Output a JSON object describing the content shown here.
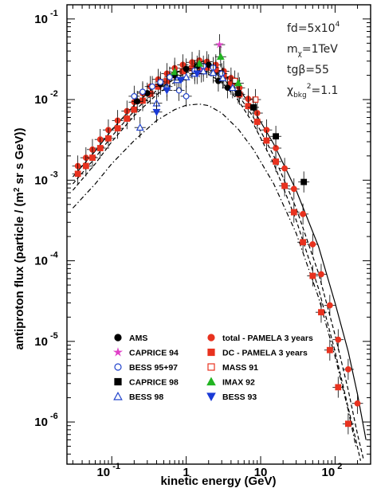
{
  "chart_data": {
    "type": "scatter",
    "xlabel": "kinetic energy (GeV)",
    "ylabel": "antiproton flux (particle / (m^2 sr s GeV))",
    "x_scale": "log",
    "y_scale": "log",
    "xlim": [
      0.025,
      300
    ],
    "ylim": [
      3e-07,
      0.15
    ],
    "x_ticks": [
      {
        "value": 0.1,
        "base": "10",
        "exp": "-1"
      },
      {
        "value": 1,
        "base": "1",
        "exp": ""
      },
      {
        "value": 10,
        "base": "10",
        "exp": ""
      },
      {
        "value": 100,
        "base": "10",
        "exp": "2"
      }
    ],
    "y_ticks": [
      {
        "value": 0.1,
        "base": "10",
        "exp": "-1"
      },
      {
        "value": 0.01,
        "base": "10",
        "exp": "-2"
      },
      {
        "value": 0.001,
        "base": "10",
        "exp": "-3"
      },
      {
        "value": 0.0001,
        "base": "10",
        "exp": "-4"
      },
      {
        "value": 1e-05,
        "base": "10",
        "exp": "-5"
      },
      {
        "value": 1e-06,
        "base": "10",
        "exp": "-6"
      }
    ],
    "annotations": [
      {
        "main": "fd=5x10",
        "sup": "4",
        "rest": ""
      },
      {
        "main": "m",
        "sub": "χ",
        "rest": "=1TeV"
      },
      {
        "main": "tgβ=55",
        "rest": ""
      },
      {
        "main": "χ",
        "sub": "bkg",
        "sup": "2",
        "rest": "=1.1"
      }
    ],
    "legend": [
      {
        "label": "AMS",
        "marker": "circle-filled",
        "color": "#000000"
      },
      {
        "label": "total - PAMELA 3 years",
        "marker": "circle-filled",
        "color": "#e8321f"
      },
      {
        "label": "CAPRICE 94",
        "marker": "star",
        "color": "#e040c8"
      },
      {
        "label": "DC - PAMELA 3 years",
        "marker": "square-filled",
        "color": "#e8321f"
      },
      {
        "label": "BESS 95+97",
        "marker": "circle-open",
        "color": "#2244cc"
      },
      {
        "label": "MASS 91",
        "marker": "square-open",
        "color": "#e8321f"
      },
      {
        "label": "CAPRICE 98",
        "marker": "square-filled",
        "color": "#000000"
      },
      {
        "label": "IMAX 92",
        "marker": "triangle-up-filled",
        "color": "#22b422"
      },
      {
        "label": "BESS 98",
        "marker": "triangle-up-open",
        "color": "#2244cc"
      },
      {
        "label": "BESS 93",
        "marker": "triangle-down-filled",
        "color": "#1a3ad6"
      }
    ],
    "curves": [
      {
        "style": "solid",
        "points": [
          [
            0.03,
            0.0011
          ],
          [
            0.06,
            0.0023
          ],
          [
            0.1,
            0.0042
          ],
          [
            0.2,
            0.0085
          ],
          [
            0.4,
            0.015
          ],
          [
            0.7,
            0.021
          ],
          [
            1,
            0.025
          ],
          [
            1.5,
            0.028
          ],
          [
            2,
            0.027
          ],
          [
            3,
            0.022
          ],
          [
            5,
            0.014
          ],
          [
            8,
            0.0075
          ],
          [
            15,
            0.0028
          ],
          [
            30,
            0.00075
          ],
          [
            60,
            0.00015
          ],
          [
            100,
            3e-05
          ],
          [
            150,
            7.5e-06
          ],
          [
            200,
            2.2e-06
          ],
          [
            260,
            6e-07
          ]
        ]
      },
      {
        "style": "dashed",
        "points": [
          [
            0.03,
            0.0009
          ],
          [
            0.06,
            0.0019
          ],
          [
            0.1,
            0.0035
          ],
          [
            0.2,
            0.0072
          ],
          [
            0.4,
            0.013
          ],
          [
            0.7,
            0.018
          ],
          [
            1,
            0.0215
          ],
          [
            1.5,
            0.024
          ],
          [
            2,
            0.0232
          ],
          [
            3,
            0.019
          ],
          [
            5,
            0.0115
          ],
          [
            8,
            0.006
          ],
          [
            15,
            0.002
          ],
          [
            30,
            0.00045
          ],
          [
            60,
            7e-05
          ],
          [
            100,
            1.2e-05
          ],
          [
            150,
            2.5e-06
          ],
          [
            200,
            7e-07
          ],
          [
            240,
            3.5e-07
          ]
        ]
      },
      {
        "style": "dashed",
        "points": [
          [
            0.03,
            0.00075
          ],
          [
            0.06,
            0.0016
          ],
          [
            0.1,
            0.003
          ],
          [
            0.2,
            0.0063
          ],
          [
            0.4,
            0.0115
          ],
          [
            0.7,
            0.0165
          ],
          [
            1,
            0.0195
          ],
          [
            1.5,
            0.0215
          ],
          [
            2,
            0.0205
          ],
          [
            3,
            0.0165
          ],
          [
            5,
            0.0098
          ],
          [
            8,
            0.005
          ],
          [
            15,
            0.0016
          ],
          [
            30,
            0.00032
          ],
          [
            60,
            4.5e-05
          ],
          [
            100,
            7.5e-06
          ],
          [
            150,
            1.5e-06
          ],
          [
            190,
            6e-07
          ],
          [
            220,
            3.3e-07
          ]
        ]
      },
      {
        "style": "dashdot",
        "points": [
          [
            0.03,
            0.00045
          ],
          [
            0.06,
            0.0009
          ],
          [
            0.1,
            0.0016
          ],
          [
            0.2,
            0.0031
          ],
          [
            0.4,
            0.0055
          ],
          [
            0.7,
            0.0075
          ],
          [
            1,
            0.0085
          ],
          [
            1.5,
            0.0088
          ],
          [
            2,
            0.0084
          ],
          [
            3,
            0.0068
          ],
          [
            5,
            0.0043
          ],
          [
            8,
            0.0024
          ],
          [
            15,
            0.0009
          ],
          [
            30,
            0.00022
          ],
          [
            60,
            3.5e-05
          ],
          [
            100,
            6.5e-06
          ],
          [
            150,
            1.4e-06
          ],
          [
            190,
            5e-07
          ]
        ]
      }
    ],
    "series": [
      {
        "name": "total - PAMELA 3 years",
        "marker": "circle-filled",
        "color": "#e8321f",
        "points": [
          [
            0.035,
            0.0015
          ],
          [
            0.045,
            0.0019
          ],
          [
            0.055,
            0.0024
          ],
          [
            0.07,
            0.0032
          ],
          [
            0.09,
            0.0042
          ],
          [
            0.12,
            0.0055
          ],
          [
            0.16,
            0.0072
          ],
          [
            0.2,
            0.0093
          ],
          [
            0.26,
            0.012
          ],
          [
            0.33,
            0.0145
          ],
          [
            0.42,
            0.0178
          ],
          [
            0.55,
            0.021
          ],
          [
            0.7,
            0.0245
          ],
          [
            0.9,
            0.027
          ],
          [
            1.2,
            0.029
          ],
          [
            1.5,
            0.0305
          ],
          [
            1.9,
            0.0295
          ],
          [
            2.5,
            0.027
          ],
          [
            3.2,
            0.0225
          ],
          [
            4,
            0.0185
          ],
          [
            5.2,
            0.014
          ],
          [
            6.8,
            0.0102
          ],
          [
            9,
            0.0068
          ],
          [
            12,
            0.0042
          ],
          [
            16,
            0.0025
          ],
          [
            21,
            0.0014
          ],
          [
            28,
            0.00078
          ],
          [
            37,
            0.00038
          ],
          [
            50,
            0.00016
          ],
          [
            65,
            6.8e-05
          ],
          [
            85,
            2.8e-05
          ],
          [
            110,
            1.05e-05
          ],
          [
            150,
            4.5e-06
          ],
          [
            200,
            1.7e-06
          ]
        ]
      },
      {
        "name": "DC - PAMELA 3 years",
        "marker": "square-filled",
        "color": "#e8321f",
        "points": [
          [
            0.035,
            0.0012
          ],
          [
            0.045,
            0.0015
          ],
          [
            0.055,
            0.0019
          ],
          [
            0.07,
            0.0025
          ],
          [
            0.09,
            0.0033
          ],
          [
            0.12,
            0.0044
          ],
          [
            0.16,
            0.0058
          ],
          [
            0.2,
            0.0075
          ],
          [
            0.26,
            0.0097
          ],
          [
            0.33,
            0.0118
          ],
          [
            0.42,
            0.0145
          ],
          [
            0.55,
            0.017
          ],
          [
            0.7,
            0.02
          ],
          [
            0.9,
            0.0225
          ],
          [
            1.2,
            0.0245
          ],
          [
            1.5,
            0.0255
          ],
          [
            1.9,
            0.025
          ],
          [
            2.5,
            0.023
          ],
          [
            3.2,
            0.0192
          ],
          [
            4,
            0.0155
          ],
          [
            5.2,
            0.0116
          ],
          [
            6.8,
            0.0083
          ],
          [
            9,
            0.0053
          ],
          [
            12,
            0.0031
          ],
          [
            16,
            0.0017
          ],
          [
            21,
            0.00085
          ],
          [
            28,
            0.0004
          ],
          [
            37,
            0.00017
          ],
          [
            50,
            6.5e-05
          ],
          [
            65,
            2.3e-05
          ],
          [
            85,
            7.8e-06
          ],
          [
            110,
            2.7e-06
          ],
          [
            150,
            9.5e-07
          ]
        ]
      },
      {
        "name": "AMS",
        "marker": "circle-filled",
        "color": "#000000",
        "points": [
          [
            0.22,
            0.0095
          ],
          [
            0.3,
            0.012
          ],
          [
            0.45,
            0.0155
          ],
          [
            0.7,
            0.02
          ],
          [
            1.0,
            0.024
          ],
          [
            1.4,
            0.026
          ],
          [
            2.0,
            0.027
          ],
          [
            2.7,
            0.017
          ],
          [
            3.6,
            0.014
          ]
        ]
      },
      {
        "name": "CAPRICE 94",
        "marker": "star",
        "color": "#e040c8",
        "points": [
          [
            2.8,
            0.048
          ],
          [
            1.6,
            0.022
          ]
        ]
      },
      {
        "name": "BESS 95+97",
        "marker": "circle-open",
        "color": "#2244cc",
        "points": [
          [
            0.2,
            0.011
          ],
          [
            0.26,
            0.0125
          ],
          [
            0.35,
            0.0145
          ],
          [
            0.45,
            0.0165
          ],
          [
            0.6,
            0.019
          ],
          [
            0.8,
            0.013
          ],
          [
            1.0,
            0.011
          ],
          [
            1.3,
            0.023
          ],
          [
            1.7,
            0.026
          ],
          [
            2.3,
            0.025
          ],
          [
            3.0,
            0.021
          ]
        ]
      },
      {
        "name": "MASS 91",
        "marker": "square-open",
        "color": "#e8321f",
        "points": [
          [
            4.5,
            0.017
          ],
          [
            8.5,
            0.01
          ]
        ]
      },
      {
        "name": "CAPRICE 98",
        "marker": "square-filled",
        "color": "#000000",
        "points": [
          [
            5.0,
            0.012
          ],
          [
            8.0,
            0.008
          ],
          [
            16,
            0.0035
          ],
          [
            38,
            0.00095
          ]
        ]
      },
      {
        "name": "IMAX 92",
        "marker": "triangle-up-filled",
        "color": "#22b422",
        "points": [
          [
            0.7,
            0.022
          ],
          [
            1.5,
            0.028
          ],
          [
            2.9,
            0.034
          ],
          [
            5.0,
            0.016
          ]
        ]
      },
      {
        "name": "BESS 98",
        "marker": "triangle-up-open",
        "color": "#2244cc",
        "points": [
          [
            0.24,
            0.0045
          ],
          [
            0.4,
            0.009
          ],
          [
            0.55,
            0.0145
          ],
          [
            0.75,
            0.0175
          ],
          [
            1.0,
            0.019
          ],
          [
            1.3,
            0.021
          ],
          [
            1.7,
            0.0225
          ],
          [
            2.3,
            0.0215
          ],
          [
            3.1,
            0.0185
          ],
          [
            4.2,
            0.014
          ]
        ]
      },
      {
        "name": "BESS 93",
        "marker": "triangle-down-filled",
        "color": "#1a3ad6",
        "points": [
          [
            0.4,
            0.007
          ],
          [
            0.55,
            0.013
          ],
          [
            0.85,
            0.0175
          ],
          [
            1.4,
            0.021
          ]
        ]
      }
    ]
  }
}
